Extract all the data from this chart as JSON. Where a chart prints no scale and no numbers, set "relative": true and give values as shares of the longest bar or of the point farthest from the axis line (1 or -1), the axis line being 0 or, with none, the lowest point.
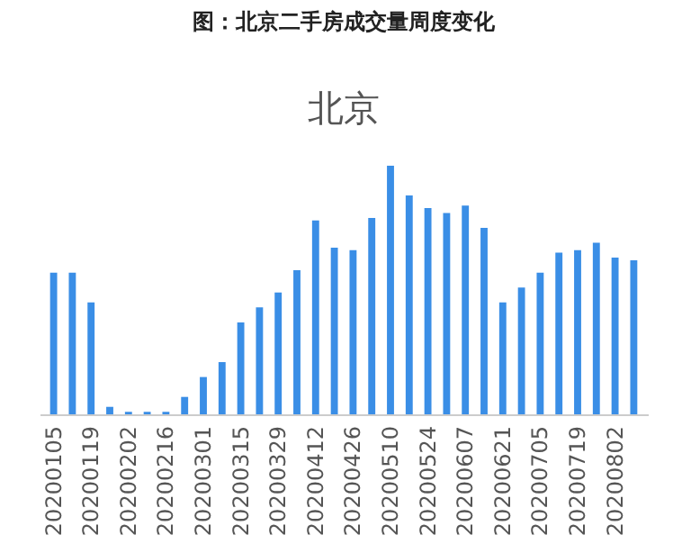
{
  "chart_data": {
    "type": "bar",
    "title": "图：北京二手房成交量周度变化",
    "subtitle": "北京",
    "relative": true,
    "color": "#3a8ee6",
    "categories": [
      "20200105",
      null,
      "20200119",
      null,
      "20200202",
      null,
      "20200216",
      null,
      "20200301",
      null,
      "20200315",
      null,
      "20200329",
      null,
      "20200412",
      null,
      "20200426",
      null,
      "20200510",
      null,
      "20200524",
      null,
      "20200607",
      null,
      "20200621",
      null,
      "20200705",
      null,
      "20200719",
      null,
      "20200802",
      null
    ],
    "values": [
      0.57,
      0.57,
      0.45,
      0.03,
      0.01,
      0.01,
      0.01,
      0.07,
      0.15,
      0.21,
      0.37,
      0.43,
      0.49,
      0.58,
      0.78,
      0.67,
      0.66,
      0.79,
      1,
      0.88,
      0.83,
      0.81,
      0.84,
      0.75,
      0.45,
      0.51,
      0.57,
      0.65,
      0.66,
      0.69,
      0.63,
      0.62
    ]
  }
}
